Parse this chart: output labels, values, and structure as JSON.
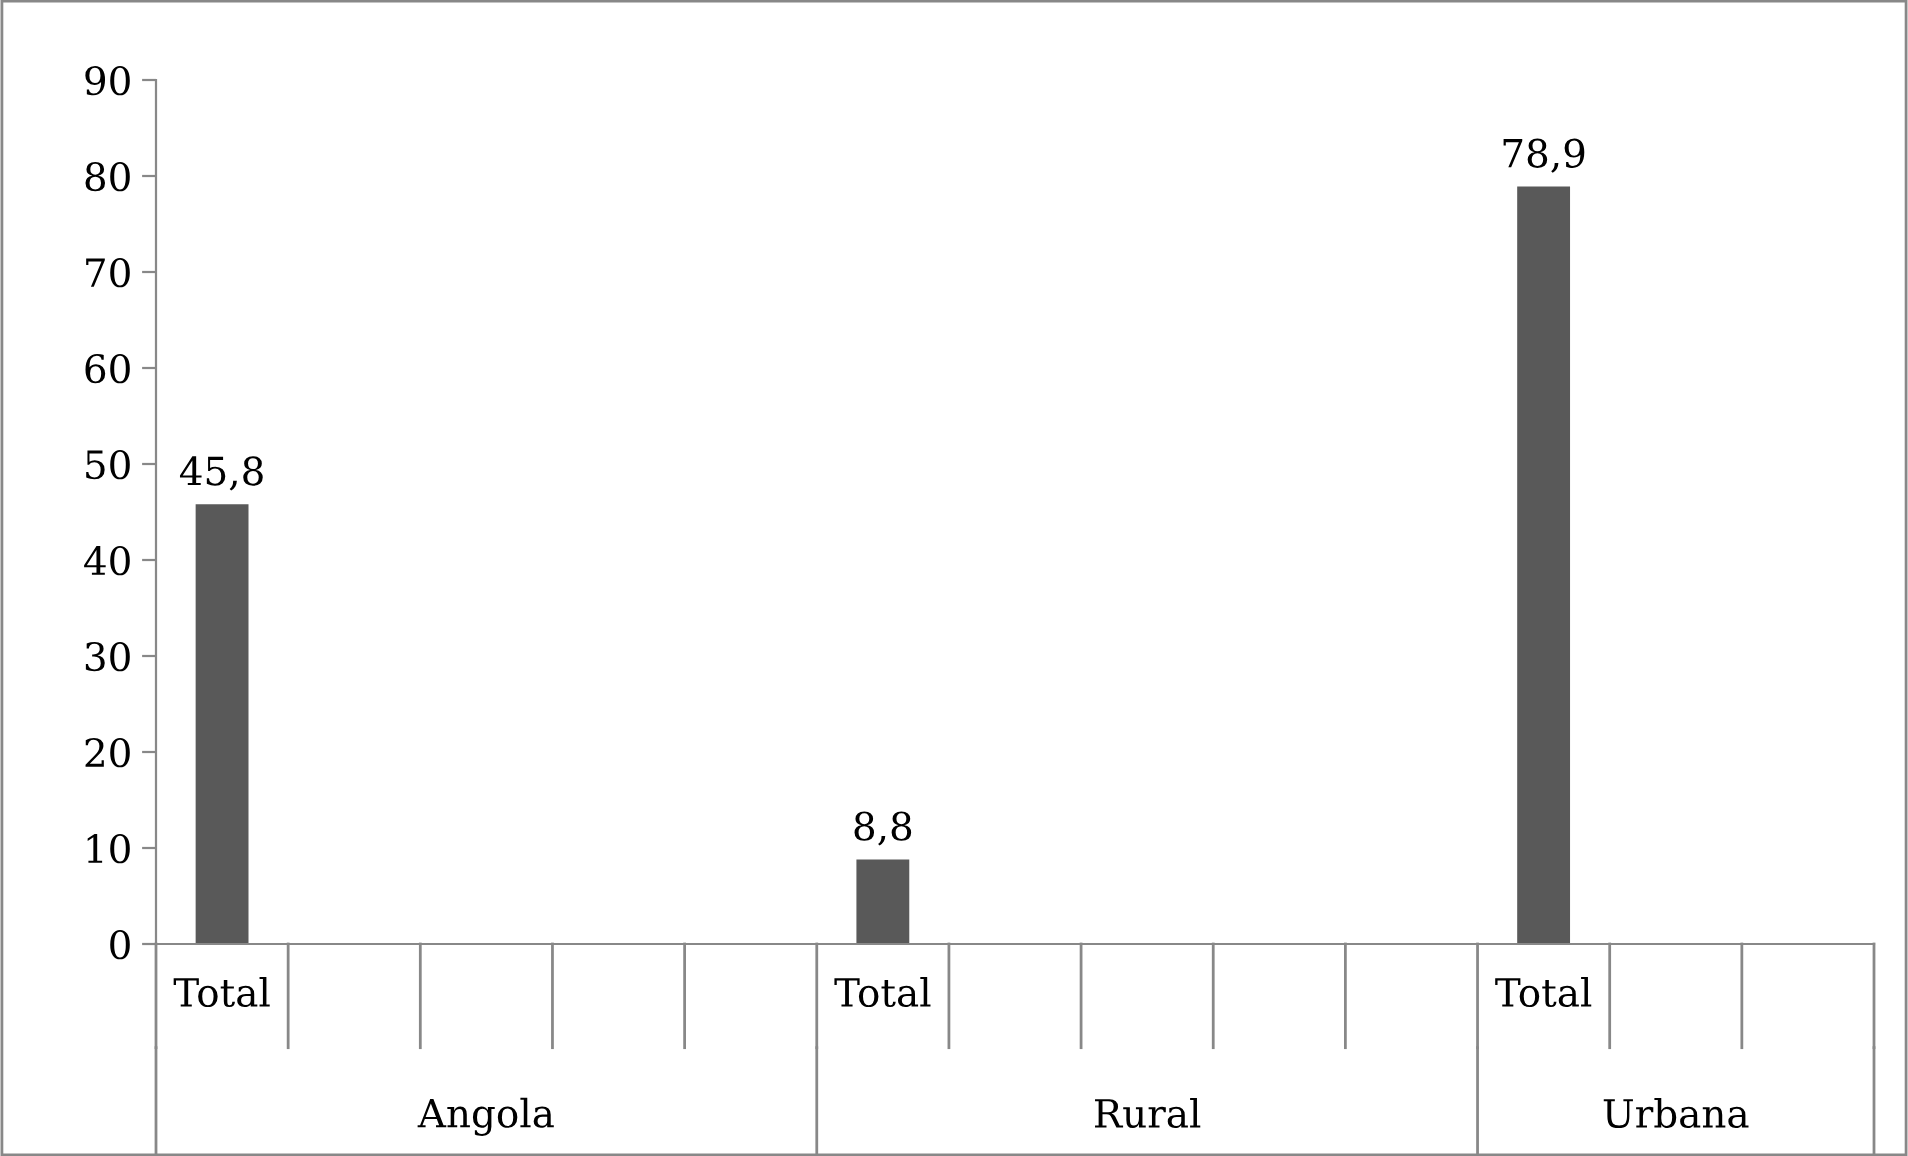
{
  "chart_data": {
    "type": "bar",
    "categories": [
      "Total",
      null,
      null,
      null,
      null,
      "Total",
      null,
      null,
      null,
      null,
      "Total",
      null,
      null
    ],
    "values": [
      45.8,
      null,
      null,
      null,
      null,
      8.8,
      null,
      null,
      null,
      null,
      78.9,
      null,
      null
    ],
    "color": "#595959",
    "value_labels": [
      "45,8",
      null,
      null,
      null,
      null,
      "8,8",
      null,
      null,
      null,
      null,
      "78,9",
      null,
      null
    ],
    "annotations": [
      "Angola",
      "Rural",
      "Urbana"
    ],
    "ylim": [
      0,
      90
    ],
    "yticks": [
      0,
      10,
      20,
      30,
      40,
      50,
      60,
      70,
      80,
      90
    ],
    "grid": false,
    "legend": false
  }
}
